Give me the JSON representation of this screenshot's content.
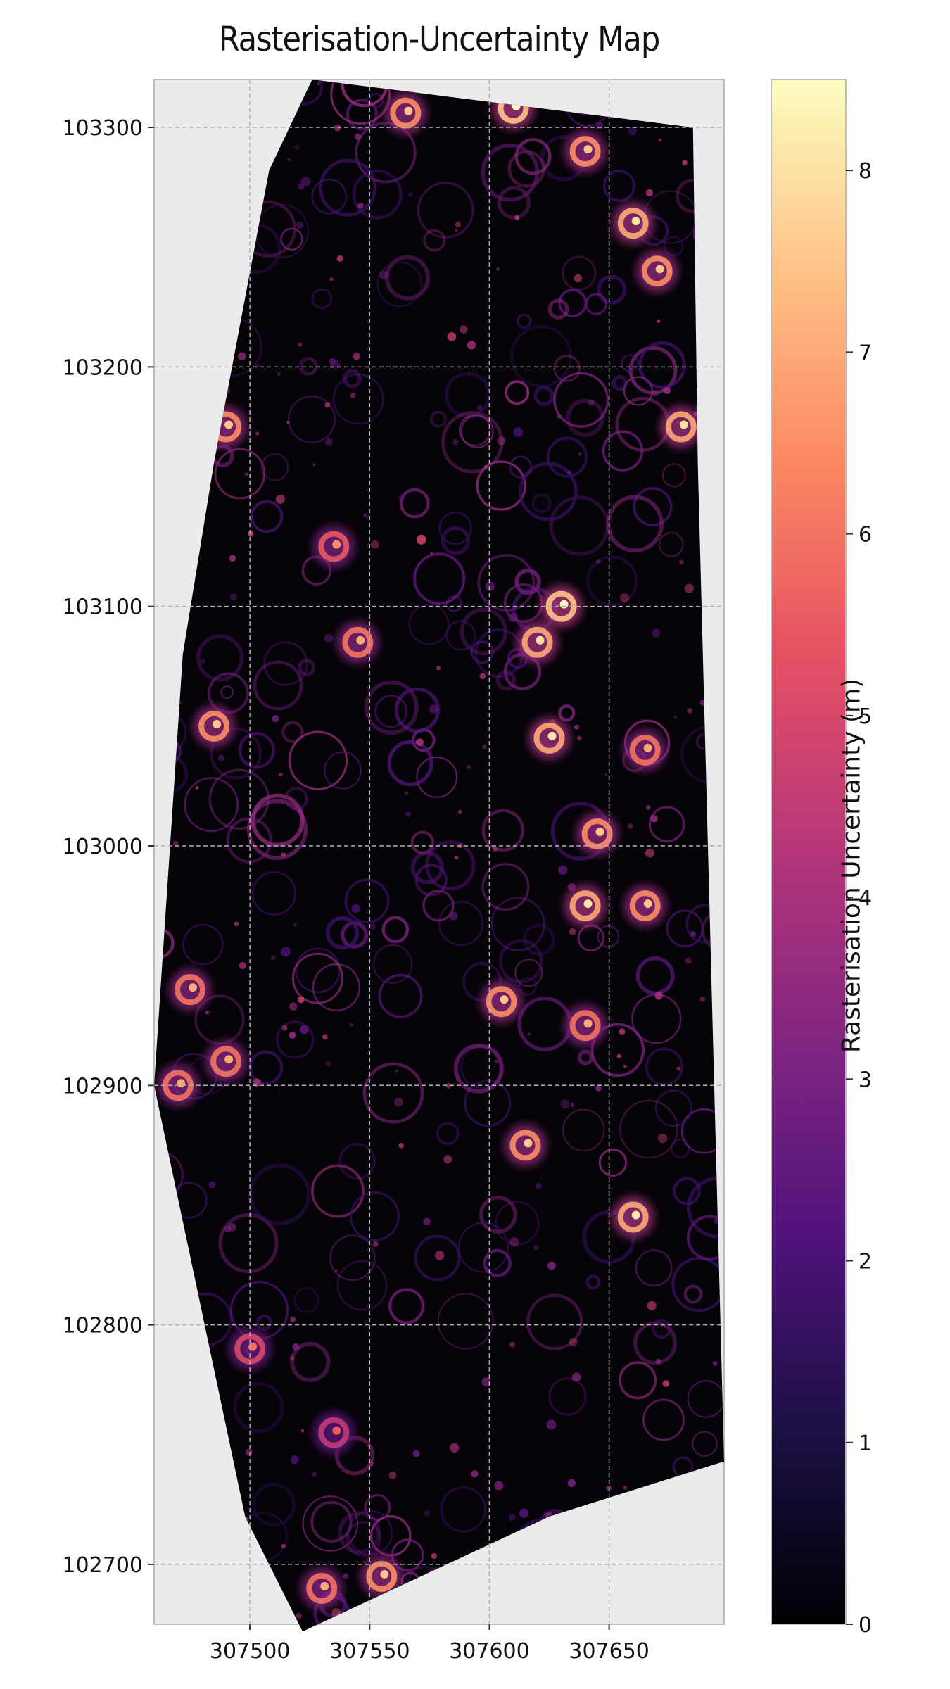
{
  "title": "Rasterisation-Uncertainty Map",
  "colorbar": {
    "label": "Rasterisation Uncertainty (m)",
    "ticks": [
      0,
      1,
      2,
      3,
      4,
      5,
      6,
      7,
      8
    ],
    "min": 0,
    "max": 8.5,
    "colormap": "magma",
    "stops": [
      "#000004",
      "#1c1044",
      "#4f127b",
      "#812581",
      "#b5367a",
      "#e55064",
      "#fb8761",
      "#fec287",
      "#fcfdbf"
    ]
  },
  "chart_data": {
    "type": "heatmap",
    "title": "Rasterisation-Uncertainty Map",
    "xlabel": "",
    "ylabel": "",
    "xlim": [
      307460,
      307698
    ],
    "ylim": [
      102675,
      103320
    ],
    "x_ticks": [
      307500,
      307550,
      307600,
      307650
    ],
    "y_ticks": [
      103300,
      103200,
      103100,
      103000,
      102900,
      102800,
      102700
    ],
    "grid": true,
    "background": "#ebebeb",
    "value_label": "Rasterisation Uncertainty (m)",
    "value_range": [
      0,
      8.5
    ],
    "footprint": [
      [
        307526,
        103320
      ],
      [
        307685,
        103300
      ],
      [
        307687,
        103160
      ],
      [
        307698,
        102743
      ],
      [
        307625,
        102720
      ],
      [
        307522,
        102672
      ],
      [
        307498,
        102720
      ],
      [
        307460,
        102900
      ],
      [
        307472,
        103080
      ],
      [
        307485,
        103160
      ],
      [
        307508,
        103282
      ]
    ],
    "hotspots": [
      {
        "x": 307565,
        "y": 103306,
        "value": 6.5
      },
      {
        "x": 307610,
        "y": 103308,
        "value": 7.5
      },
      {
        "x": 307640,
        "y": 103290,
        "value": 6.5
      },
      {
        "x": 307660,
        "y": 103260,
        "value": 7.0
      },
      {
        "x": 307670,
        "y": 103240,
        "value": 6.5
      },
      {
        "x": 307490,
        "y": 103175,
        "value": 6.5
      },
      {
        "x": 307680,
        "y": 103175,
        "value": 7.0
      },
      {
        "x": 307535,
        "y": 103125,
        "value": 5.5
      },
      {
        "x": 307630,
        "y": 103100,
        "value": 7.5
      },
      {
        "x": 307620,
        "y": 103085,
        "value": 7.0
      },
      {
        "x": 307545,
        "y": 103085,
        "value": 6.0
      },
      {
        "x": 307485,
        "y": 103050,
        "value": 6.5
      },
      {
        "x": 307625,
        "y": 103045,
        "value": 7.0
      },
      {
        "x": 307665,
        "y": 103040,
        "value": 6.0
      },
      {
        "x": 307645,
        "y": 103005,
        "value": 6.5
      },
      {
        "x": 307640,
        "y": 102975,
        "value": 7.0
      },
      {
        "x": 307665,
        "y": 102975,
        "value": 6.5
      },
      {
        "x": 307475,
        "y": 102940,
        "value": 6.0
      },
      {
        "x": 307605,
        "y": 102935,
        "value": 6.5
      },
      {
        "x": 307640,
        "y": 102925,
        "value": 6.0
      },
      {
        "x": 307470,
        "y": 102900,
        "value": 6.0
      },
      {
        "x": 307490,
        "y": 102910,
        "value": 6.0
      },
      {
        "x": 307615,
        "y": 102875,
        "value": 6.5
      },
      {
        "x": 307660,
        "y": 102845,
        "value": 7.0
      },
      {
        "x": 307500,
        "y": 102790,
        "value": 5.0
      },
      {
        "x": 307535,
        "y": 102755,
        "value": 4.5
      },
      {
        "x": 307555,
        "y": 102695,
        "value": 6.5
      },
      {
        "x": 307530,
        "y": 102690,
        "value": 6.0
      }
    ]
  }
}
